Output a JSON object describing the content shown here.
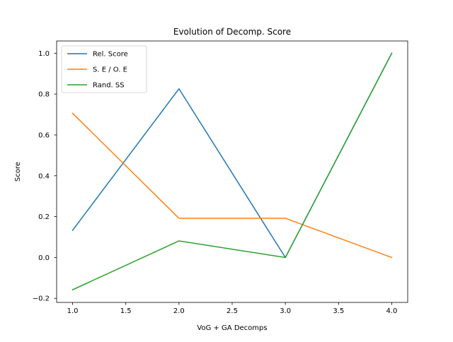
{
  "chart_data": {
    "type": "line",
    "title": "Evolution of Decomp. Score",
    "xlabel": "VoG + GA Decomps",
    "ylabel": "Score",
    "x": [
      1.0,
      2.0,
      3.0,
      4.0
    ],
    "xlim": [
      0.85,
      4.15
    ],
    "ylim": [
      -0.22,
      1.06
    ],
    "xticks": [
      "1.0",
      "1.5",
      "2.0",
      "2.5",
      "3.0",
      "3.5",
      "4.0"
    ],
    "yticks": [
      "−0.2",
      "0.0",
      "0.2",
      "0.4",
      "0.6",
      "0.8",
      "1.0"
    ],
    "grid": false,
    "legend_position": "upper-left",
    "series": [
      {
        "name": "Rel. Score",
        "color": "#1f77b4",
        "values": [
          0.133,
          0.826,
          0.0,
          1.0
        ]
      },
      {
        "name": "S. E / O. E",
        "color": "#ff7f0e",
        "values": [
          0.706,
          0.192,
          0.192,
          0.0
        ]
      },
      {
        "name": "Rand. SS",
        "color": "#2ca02c",
        "values": [
          -0.158,
          0.081,
          0.0,
          1.0
        ]
      }
    ]
  }
}
